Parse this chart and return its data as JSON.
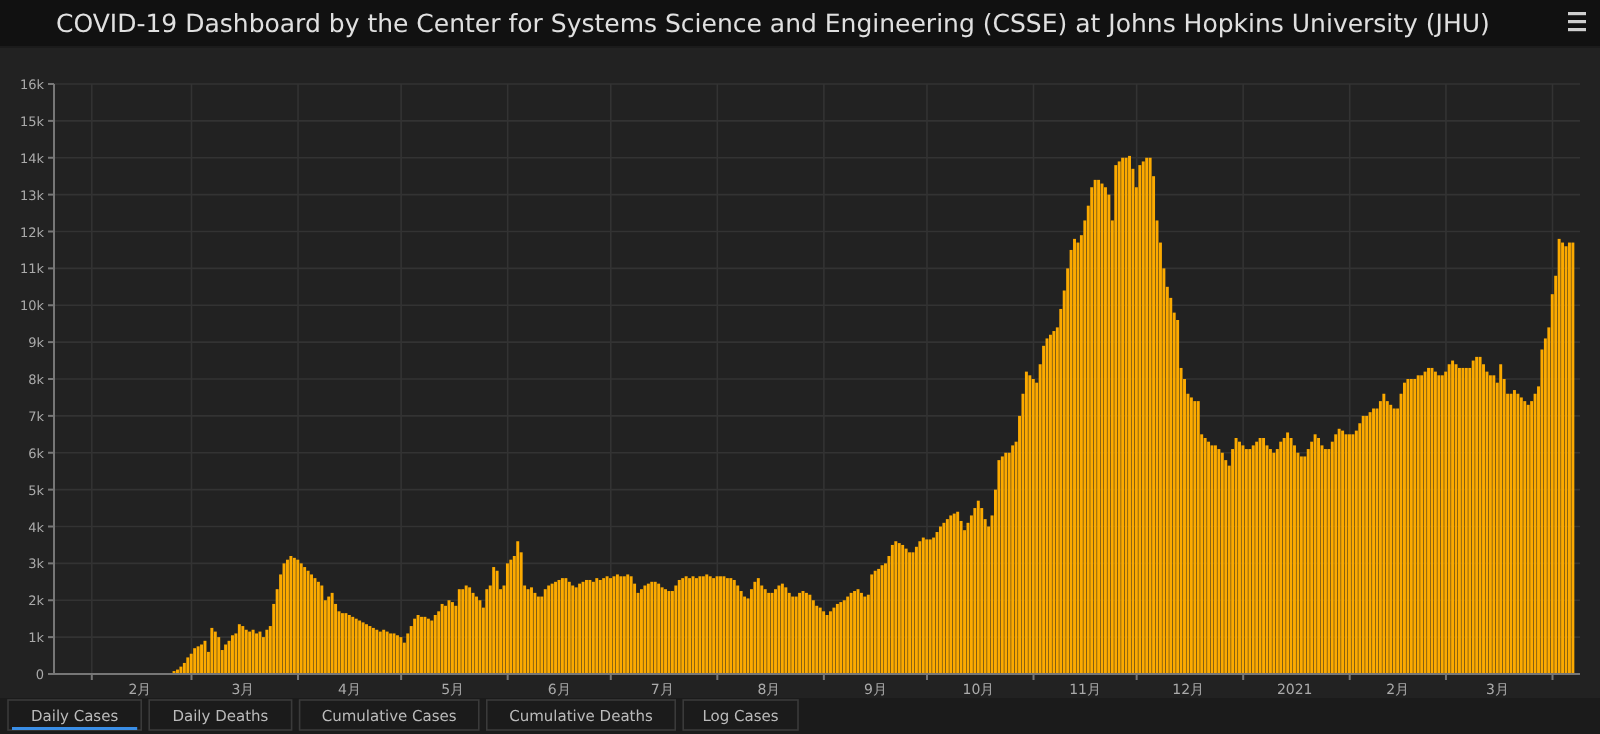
{
  "chart_data": {
    "type": "bar",
    "title": "COVID-19 Dashboard by the Center for Systems Science and Engineering (CSSE) at Johns Hopkins University (JHU)",
    "color": "#fcaa00",
    "grid": true,
    "ylim": [
      0,
      16000
    ],
    "yticks": [
      0,
      {
        "value": 1000,
        "label": "1k"
      },
      {
        "value": 2000,
        "label": "2k"
      },
      {
        "value": 3000,
        "label": "3k"
      },
      {
        "value": 4000,
        "label": "4k"
      },
      {
        "value": 5000,
        "label": "5k"
      },
      {
        "value": 6000,
        "label": "6k"
      },
      {
        "value": 7000,
        "label": "7k"
      },
      {
        "value": 8000,
        "label": "8k"
      },
      {
        "value": 9000,
        "label": "9k"
      },
      {
        "value": 10000,
        "label": "10k"
      },
      {
        "value": 11000,
        "label": "11k"
      },
      {
        "value": 12000,
        "label": "12k"
      },
      {
        "value": 13000,
        "label": "13k"
      },
      {
        "value": 14000,
        "label": "14k"
      },
      {
        "value": 15000,
        "label": "15k"
      },
      {
        "value": 16000,
        "label": "16k"
      }
    ],
    "xlim": [
      "2020-01-21",
      "2021-04-09"
    ],
    "xticks": [
      {
        "value": "2020-02-01",
        "label": null
      },
      {
        "value": "2020-02-15",
        "label": "2月"
      },
      {
        "value": "2020-03-01",
        "label": null
      },
      {
        "value": "2020-03-16",
        "label": "3月"
      },
      {
        "value": "2020-04-01",
        "label": null
      },
      {
        "value": "2020-04-16",
        "label": "4月"
      },
      {
        "value": "2020-05-01",
        "label": null
      },
      {
        "value": "2020-05-16",
        "label": "5月"
      },
      {
        "value": "2020-06-01",
        "label": null
      },
      {
        "value": "2020-06-16",
        "label": "6月"
      },
      {
        "value": "2020-07-01",
        "label": null
      },
      {
        "value": "2020-07-16",
        "label": "7月"
      },
      {
        "value": "2020-08-01",
        "label": null
      },
      {
        "value": "2020-08-16",
        "label": "8月"
      },
      {
        "value": "2020-09-01",
        "label": null
      },
      {
        "value": "2020-09-16",
        "label": "9月"
      },
      {
        "value": "2020-10-01",
        "label": null
      },
      {
        "value": "2020-10-16",
        "label": "10月"
      },
      {
        "value": "2020-11-01",
        "label": null
      },
      {
        "value": "2020-11-16",
        "label": "11月"
      },
      {
        "value": "2020-12-01",
        "label": null
      },
      {
        "value": "2020-12-16",
        "label": "12月"
      },
      {
        "value": "2021-01-01",
        "label": null
      },
      {
        "value": "2021-01-16",
        "label": "2021"
      },
      {
        "value": "2021-02-01",
        "label": null
      },
      {
        "value": "2021-02-15",
        "label": "2月"
      },
      {
        "value": "2021-03-01",
        "label": null
      },
      {
        "value": "2021-03-16",
        "label": "3月"
      },
      {
        "value": "2021-04-01",
        "label": null
      }
    ],
    "annotations": [
      "Daily Cases",
      "Daily Deaths",
      "Cumulative Cases",
      "Cumulative Deaths",
      "Log Cases"
    ],
    "x": [
      "2020-01-22",
      "2020-01-23",
      "2020-01-24",
      "2020-01-25",
      "2020-01-26",
      "2020-01-27",
      "2020-01-28",
      "2020-01-29",
      "2020-01-30",
      "2020-01-31",
      "2020-02-01",
      "2020-02-02",
      "2020-02-03",
      "2020-02-04",
      "2020-02-05",
      "2020-02-06",
      "2020-02-07",
      "2020-02-08",
      "2020-02-09",
      "2020-02-10",
      "2020-02-11",
      "2020-02-12",
      "2020-02-13",
      "2020-02-14",
      "2020-02-15",
      "2020-02-16",
      "2020-02-17",
      "2020-02-18",
      "2020-02-19",
      "2020-02-20",
      "2020-02-21",
      "2020-02-22",
      "2020-02-23",
      "2020-02-24",
      "2020-02-25",
      "2020-02-26",
      "2020-02-27",
      "2020-02-28",
      "2020-02-29",
      "2020-03-01",
      "2020-03-02",
      "2020-03-03",
      "2020-03-04",
      "2020-03-05",
      "2020-03-06",
      "2020-03-07",
      "2020-03-08",
      "2020-03-09",
      "2020-03-10",
      "2020-03-11",
      "2020-03-12",
      "2020-03-13",
      "2020-03-14",
      "2020-03-15",
      "2020-03-16",
      "2020-03-17",
      "2020-03-18",
      "2020-03-19",
      "2020-03-20",
      "2020-03-21",
      "2020-03-22",
      "2020-03-23",
      "2020-03-24",
      "2020-03-25",
      "2020-03-26",
      "2020-03-27",
      "2020-03-28",
      "2020-03-29",
      "2020-03-30",
      "2020-03-31",
      "2020-04-01",
      "2020-04-02",
      "2020-04-03",
      "2020-04-04",
      "2020-04-05",
      "2020-04-06",
      "2020-04-07",
      "2020-04-08",
      "2020-04-09",
      "2020-04-10",
      "2020-04-11",
      "2020-04-12",
      "2020-04-13",
      "2020-04-14",
      "2020-04-15",
      "2020-04-16",
      "2020-04-17",
      "2020-04-18",
      "2020-04-19",
      "2020-04-20",
      "2020-04-21",
      "2020-04-22",
      "2020-04-23",
      "2020-04-24",
      "2020-04-25",
      "2020-04-26",
      "2020-04-27",
      "2020-04-28",
      "2020-04-29",
      "2020-04-30",
      "2020-05-01",
      "2020-05-02",
      "2020-05-03",
      "2020-05-04",
      "2020-05-05",
      "2020-05-06",
      "2020-05-07",
      "2020-05-08",
      "2020-05-09",
      "2020-05-10",
      "2020-05-11",
      "2020-05-12",
      "2020-05-13",
      "2020-05-14",
      "2020-05-15",
      "2020-05-16",
      "2020-05-17",
      "2020-05-18",
      "2020-05-19",
      "2020-05-20",
      "2020-05-21",
      "2020-05-22",
      "2020-05-23",
      "2020-05-24",
      "2020-05-25",
      "2020-05-26",
      "2020-05-27",
      "2020-05-28",
      "2020-05-29",
      "2020-05-30",
      "2020-05-31",
      "2020-06-01",
      "2020-06-02",
      "2020-06-03",
      "2020-06-04",
      "2020-06-05",
      "2020-06-06",
      "2020-06-07",
      "2020-06-08",
      "2020-06-09",
      "2020-06-10",
      "2020-06-11",
      "2020-06-12",
      "2020-06-13",
      "2020-06-14",
      "2020-06-15",
      "2020-06-16",
      "2020-06-17",
      "2020-06-18",
      "2020-06-19",
      "2020-06-20",
      "2020-06-21",
      "2020-06-22",
      "2020-06-23",
      "2020-06-24",
      "2020-06-25",
      "2020-06-26",
      "2020-06-27",
      "2020-06-28",
      "2020-06-29",
      "2020-06-30",
      "2020-07-01",
      "2020-07-02",
      "2020-07-03",
      "2020-07-04",
      "2020-07-05",
      "2020-07-06",
      "2020-07-07",
      "2020-07-08",
      "2020-07-09",
      "2020-07-10",
      "2020-07-11",
      "2020-07-12",
      "2020-07-13",
      "2020-07-14",
      "2020-07-15",
      "2020-07-16",
      "2020-07-17",
      "2020-07-18",
      "2020-07-19",
      "2020-07-20",
      "2020-07-21",
      "2020-07-22",
      "2020-07-23",
      "2020-07-24",
      "2020-07-25",
      "2020-07-26",
      "2020-07-27",
      "2020-07-28",
      "2020-07-29",
      "2020-07-30",
      "2020-07-31",
      "2020-08-01",
      "2020-08-02",
      "2020-08-03",
      "2020-08-04",
      "2020-08-05",
      "2020-08-06",
      "2020-08-07",
      "2020-08-08",
      "2020-08-09",
      "2020-08-10",
      "2020-08-11",
      "2020-08-12",
      "2020-08-13",
      "2020-08-14",
      "2020-08-15",
      "2020-08-16",
      "2020-08-17",
      "2020-08-18",
      "2020-08-19",
      "2020-08-20",
      "2020-08-21",
      "2020-08-22",
      "2020-08-23",
      "2020-08-24",
      "2020-08-25",
      "2020-08-26",
      "2020-08-27",
      "2020-08-28",
      "2020-08-29",
      "2020-08-30",
      "2020-08-31",
      "2020-09-01",
      "2020-09-02",
      "2020-09-03",
      "2020-09-04",
      "2020-09-05",
      "2020-09-06",
      "2020-09-07",
      "2020-09-08",
      "2020-09-09",
      "2020-09-10",
      "2020-09-11",
      "2020-09-12",
      "2020-09-13",
      "2020-09-14",
      "2020-09-15",
      "2020-09-16",
      "2020-09-17",
      "2020-09-18",
      "2020-09-19",
      "2020-09-20",
      "2020-09-21",
      "2020-09-22",
      "2020-09-23",
      "2020-09-24",
      "2020-09-25",
      "2020-09-26",
      "2020-09-27",
      "2020-09-28",
      "2020-09-29",
      "2020-09-30",
      "2020-10-01",
      "2020-10-02",
      "2020-10-03",
      "2020-10-04",
      "2020-10-05",
      "2020-10-06",
      "2020-10-07",
      "2020-10-08",
      "2020-10-09",
      "2020-10-10",
      "2020-10-11",
      "2020-10-12",
      "2020-10-13",
      "2020-10-14",
      "2020-10-15",
      "2020-10-16",
      "2020-10-17",
      "2020-10-18",
      "2020-10-19",
      "2020-10-20",
      "2020-10-21",
      "2020-10-22",
      "2020-10-23",
      "2020-10-24",
      "2020-10-25",
      "2020-10-26",
      "2020-10-27",
      "2020-10-28",
      "2020-10-29",
      "2020-10-30",
      "2020-10-31",
      "2020-11-01",
      "2020-11-02",
      "2020-11-03",
      "2020-11-04",
      "2020-11-05",
      "2020-11-06",
      "2020-11-07",
      "2020-11-08",
      "2020-11-09",
      "2020-11-10",
      "2020-11-11",
      "2020-11-12",
      "2020-11-13",
      "2020-11-14",
      "2020-11-15",
      "2020-11-16",
      "2020-11-17",
      "2020-11-18",
      "2020-11-19",
      "2020-11-20",
      "2020-11-21",
      "2020-11-22",
      "2020-11-23",
      "2020-11-24",
      "2020-11-25",
      "2020-11-26",
      "2020-11-27",
      "2020-11-28",
      "2020-11-29",
      "2020-11-30",
      "2020-12-01",
      "2020-12-02",
      "2020-12-03",
      "2020-12-04",
      "2020-12-05",
      "2020-12-06",
      "2020-12-07",
      "2020-12-08",
      "2020-12-09",
      "2020-12-10",
      "2020-12-11",
      "2020-12-12",
      "2020-12-13",
      "2020-12-14",
      "2020-12-15",
      "2020-12-16",
      "2020-12-17",
      "2020-12-18",
      "2020-12-19",
      "2020-12-20",
      "2020-12-21",
      "2020-12-22",
      "2020-12-23",
      "2020-12-24",
      "2020-12-25",
      "2020-12-26",
      "2020-12-27",
      "2020-12-28",
      "2020-12-29",
      "2020-12-30",
      "2020-12-31",
      "2021-01-01",
      "2021-01-02",
      "2021-01-03",
      "2021-01-04",
      "2021-01-05",
      "2021-01-06",
      "2021-01-07",
      "2021-01-08",
      "2021-01-09",
      "2021-01-10",
      "2021-01-11",
      "2021-01-12",
      "2021-01-13",
      "2021-01-14",
      "2021-01-15",
      "2021-01-16",
      "2021-01-17",
      "2021-01-18",
      "2021-01-19",
      "2021-01-20",
      "2021-01-21",
      "2021-01-22",
      "2021-01-23",
      "2021-01-24",
      "2021-01-25",
      "2021-01-26",
      "2021-01-27",
      "2021-01-28",
      "2021-01-29",
      "2021-01-30",
      "2021-01-31",
      "2021-02-01",
      "2021-02-02",
      "2021-02-03",
      "2021-02-04",
      "2021-02-05",
      "2021-02-06",
      "2021-02-07",
      "2021-02-08",
      "2021-02-09",
      "2021-02-10",
      "2021-02-11",
      "2021-02-12",
      "2021-02-13",
      "2021-02-14",
      "2021-02-15",
      "2021-02-16",
      "2021-02-17",
      "2021-02-18",
      "2021-02-19",
      "2021-02-20",
      "2021-02-21",
      "2021-02-22",
      "2021-02-23",
      "2021-02-24",
      "2021-02-25",
      "2021-02-26",
      "2021-02-27",
      "2021-02-28",
      "2021-03-01",
      "2021-03-02",
      "2021-03-03",
      "2021-03-04",
      "2021-03-05",
      "2021-03-06",
      "2021-03-07",
      "2021-03-08",
      "2021-03-09",
      "2021-03-10",
      "2021-03-11",
      "2021-03-12",
      "2021-03-13",
      "2021-03-14",
      "2021-03-15",
      "2021-03-16",
      "2021-03-17",
      "2021-03-18",
      "2021-03-19",
      "2021-03-20",
      "2021-03-21",
      "2021-03-22",
      "2021-03-23",
      "2021-03-24",
      "2021-03-25",
      "2021-03-26",
      "2021-03-27",
      "2021-03-28",
      "2021-03-29",
      "2021-03-30",
      "2021-03-31",
      "2021-04-01",
      "2021-04-02",
      "2021-04-03",
      "2021-04-04",
      "2021-04-05",
      "2021-04-06",
      "2021-04-07"
    ],
    "values": [
      0,
      0,
      0,
      0,
      0,
      0,
      0,
      0,
      0,
      0,
      0,
      0,
      0,
      0,
      0,
      0,
      0,
      0,
      0,
      0,
      0,
      0,
      0,
      0,
      0,
      0,
      0,
      0,
      0,
      0,
      0,
      0,
      0,
      0,
      80,
      120,
      200,
      300,
      450,
      550,
      700,
      750,
      800,
      900,
      600,
      1250,
      1150,
      1000,
      650,
      800,
      900,
      1050,
      1100,
      1350,
      1300,
      1200,
      1150,
      1200,
      1100,
      1150,
      1000,
      1200,
      1300,
      1900,
      2300,
      2700,
      3000,
      3100,
      3200,
      3150,
      3100,
      3000,
      2900,
      2800,
      2700,
      2600,
      2500,
      2400,
      2000,
      2100,
      2200,
      1900,
      1700,
      1650,
      1650,
      1600,
      1550,
      1500,
      1450,
      1400,
      1350,
      1300,
      1250,
      1200,
      1150,
      1200,
      1150,
      1100,
      1100,
      1050,
      1000,
      850,
      1100,
      1300,
      1500,
      1600,
      1550,
      1550,
      1500,
      1450,
      1600,
      1700,
      1900,
      1850,
      2000,
      1950,
      1850,
      2300,
      2300,
      2400,
      2350,
      2200,
      2100,
      2000,
      1800,
      2300,
      2400,
      2900,
      2800,
      2300,
      2400,
      3000,
      3100,
      3200,
      3600,
      3300,
      2400,
      2300,
      2350,
      2200,
      2100,
      2100,
      2300,
      2400,
      2450,
      2500,
      2550,
      2600,
      2600,
      2500,
      2400,
      2350,
      2450,
      2500,
      2550,
      2550,
      2500,
      2600,
      2550,
      2600,
      2650,
      2600,
      2650,
      2700,
      2650,
      2650,
      2700,
      2650,
      2450,
      2200,
      2300,
      2400,
      2450,
      2500,
      2500,
      2450,
      2350,
      2300,
      2250,
      2250,
      2400,
      2550,
      2600,
      2650,
      2600,
      2650,
      2600,
      2650,
      2650,
      2700,
      2650,
      2600,
      2650,
      2650,
      2650,
      2600,
      2600,
      2550,
      2400,
      2250,
      2100,
      2050,
      2300,
      2500,
      2600,
      2400,
      2300,
      2200,
      2200,
      2300,
      2400,
      2450,
      2350,
      2200,
      2100,
      2100,
      2200,
      2250,
      2200,
      2150,
      2000,
      1850,
      1800,
      1700,
      1600,
      1700,
      1800,
      1900,
      1950,
      2000,
      2100,
      2200,
      2250,
      2300,
      2200,
      2100,
      2150,
      2700,
      2800,
      2850,
      2950,
      3000,
      3200,
      3500,
      3600,
      3550,
      3500,
      3400,
      3300,
      3300,
      3450,
      3600,
      3700,
      3650,
      3650,
      3700,
      3850,
      4000,
      4100,
      4200,
      4300,
      4350,
      4400,
      4150,
      3900,
      4100,
      4300,
      4500,
      4700,
      4500,
      4200,
      4000,
      4300,
      5000,
      5800,
      5900,
      6000,
      6000,
      6200,
      6300,
      7000,
      7600,
      8200,
      8100,
      8000,
      7900,
      8400,
      8900,
      9100,
      9200,
      9300,
      9400,
      9900,
      10400,
      11000,
      11500,
      11800,
      11700,
      11900,
      12300,
      12700,
      13200,
      13400,
      13400,
      13300,
      13200,
      13000,
      12300,
      13800,
      13900,
      14000,
      14000,
      14050,
      13700,
      13200,
      13800,
      13900,
      14000,
      14000,
      13500,
      12300,
      11700,
      11000,
      10500,
      10200,
      9800,
      9600,
      8300,
      8000,
      7600,
      7500,
      7400,
      7400,
      6500,
      6400,
      6300,
      6200,
      6200,
      6100,
      6000,
      5800,
      5650,
      6100,
      6400,
      6300,
      6200,
      6100,
      6100,
      6200,
      6300,
      6400,
      6400,
      6200,
      6100,
      6000,
      6100,
      6300,
      6400,
      6550,
      6400,
      6200,
      6000,
      5900,
      5900,
      6100,
      6300,
      6500,
      6400,
      6200,
      6100,
      6100,
      6300,
      6500,
      6650,
      6600,
      6500,
      6500,
      6500,
      6600,
      6800,
      7000,
      7000,
      7100,
      7200,
      7200,
      7400,
      7600,
      7400,
      7300,
      7200,
      7200,
      7600,
      7900,
      8000,
      8000,
      8000,
      8100,
      8100,
      8200,
      8300,
      8300,
      8200,
      8100,
      8100,
      8200,
      8400,
      8500,
      8400,
      8300,
      8300,
      8300,
      8300,
      8500,
      8600,
      8600,
      8400,
      8200,
      8100,
      8100,
      7900,
      8400,
      8000,
      7600,
      7600,
      7700,
      7600,
      7500,
      7400,
      7300,
      7400,
      7600,
      7800,
      8800,
      9100,
      9400,
      10300,
      10800,
      11800,
      11700,
      11600,
      11700,
      11700
    ]
  }
}
